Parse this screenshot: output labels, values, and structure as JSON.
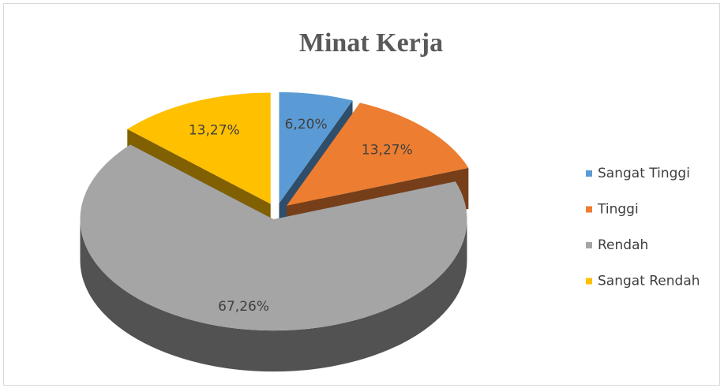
{
  "chart_data": {
    "type": "pie",
    "title": "Minat Kerja",
    "categories": [
      "Sangat Tinggi",
      "Tinggi",
      "Rendah",
      "Sangat Rendah"
    ],
    "values": [
      6.2,
      13.27,
      67.26,
      13.27
    ],
    "value_labels": [
      "6,20%",
      "13,27%",
      "67,26%",
      "13,27%"
    ],
    "colors": [
      "#5b9bd5",
      "#ed7d31",
      "#a5a5a5",
      "#ffc000"
    ],
    "legend": "right"
  }
}
